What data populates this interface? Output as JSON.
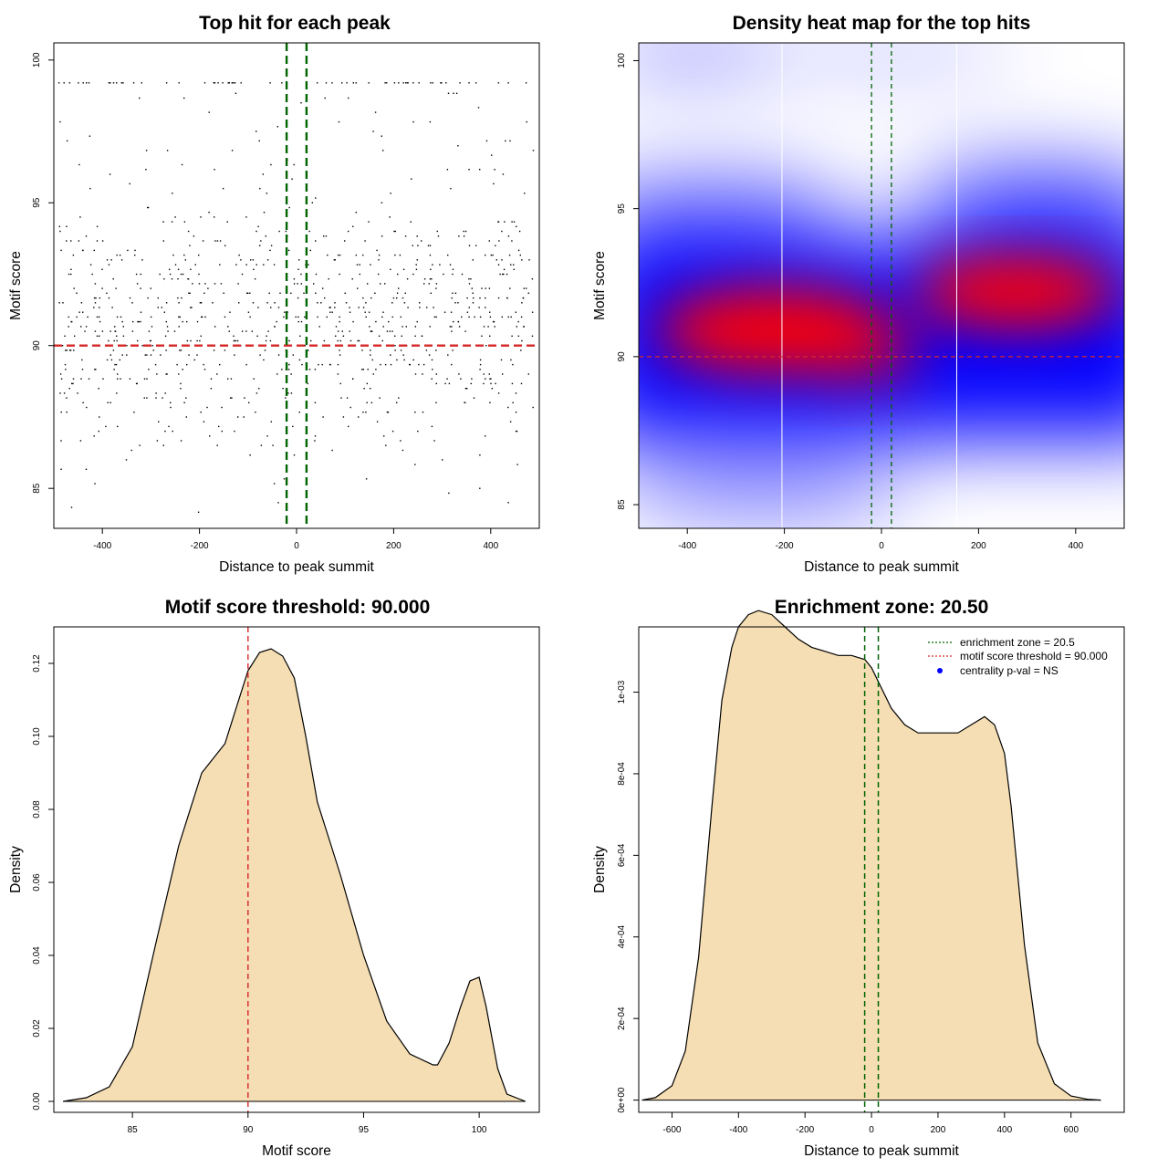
{
  "chart_data": [
    {
      "type": "scatter",
      "title": "Top hit for each peak",
      "xlabel": "Distance to peak summit",
      "ylabel": "Motif score",
      "xlim": [
        -500,
        500
      ],
      "ylim": [
        83.6,
        100.6
      ],
      "xticks": [
        -400,
        -200,
        0,
        200,
        400
      ],
      "yticks": [
        85,
        90,
        95,
        100
      ],
      "xtick_labels": [
        "-400",
        "-200",
        "0",
        "200",
        "400"
      ],
      "ytick_labels": [
        "85",
        "90",
        "95",
        "100"
      ],
      "hlines": [
        {
          "y": 90,
          "color": "#d62728",
          "style": "dashed"
        }
      ],
      "vlines": [
        {
          "x": -20.5,
          "color": "#006400",
          "style": "dashed"
        },
        {
          "x": 20.5,
          "color": "#006400",
          "style": "dashed"
        }
      ],
      "approx_points": 1000,
      "y_distribution": "concentrated 86-94, with a row of perfect scores at 100"
    },
    {
      "type": "heatmap",
      "title": "Density heat map for the top hits",
      "xlabel": "Distance to peak summit",
      "ylabel": "Motif score",
      "xlim": [
        -500,
        500
      ],
      "ylim": [
        84.2,
        100.6
      ],
      "xticks": [
        -400,
        -200,
        0,
        200,
        400
      ],
      "yticks": [
        85,
        90,
        95,
        100
      ],
      "xtick_labels": [
        "-400",
        "-200",
        "0",
        "200",
        "400"
      ],
      "ytick_labels": [
        "85",
        "90",
        "95",
        "100"
      ],
      "colorscale": [
        "#ffffff",
        "#0000ff",
        "#ff0000"
      ],
      "hotspots": [
        {
          "x": -220,
          "y": 90.9
        },
        {
          "x": 280,
          "y": 92.2
        }
      ],
      "hlines": [
        {
          "y": 90,
          "color": "#d62728",
          "style": "dashed"
        }
      ],
      "vlines": [
        {
          "x": -20.5,
          "color": "#006400",
          "style": "dashed"
        },
        {
          "x": 20.5,
          "color": "#006400",
          "style": "dashed"
        }
      ],
      "white_vlines": [
        -205,
        155
      ]
    },
    {
      "type": "area",
      "title": "Motif score threshold: 90.000",
      "xlabel": "Motif score",
      "ylabel": "Density",
      "xlim": [
        81.6,
        102.6
      ],
      "ylim": [
        -0.003,
        0.13
      ],
      "xticks": [
        85,
        90,
        95,
        100
      ],
      "yticks": [
        0,
        0.02,
        0.04,
        0.06,
        0.08,
        0.1,
        0.12
      ],
      "xtick_labels": [
        "85",
        "90",
        "95",
        "100"
      ],
      "ytick_labels": [
        "0.00",
        "0.02",
        "0.04",
        "0.06",
        "0.08",
        "0.10",
        "0.12"
      ],
      "fill": "#f5deb3",
      "vlines": [
        {
          "x": 90,
          "color": "#d62728",
          "style": "dashed"
        }
      ],
      "x": [
        82,
        83,
        84,
        85,
        86,
        87,
        88,
        88.5,
        89,
        89.5,
        90,
        90.5,
        91,
        91.5,
        92,
        92.5,
        93,
        93.5,
        94,
        95,
        96,
        97,
        98,
        98.2,
        98.7,
        99.2,
        99.6,
        100,
        100.3,
        100.8,
        101.2,
        102
      ],
      "y": [
        0.0,
        0.001,
        0.004,
        0.015,
        0.043,
        0.07,
        0.09,
        0.094,
        0.098,
        0.108,
        0.118,
        0.123,
        0.124,
        0.122,
        0.116,
        0.1,
        0.082,
        0.072,
        0.062,
        0.04,
        0.022,
        0.013,
        0.01,
        0.01,
        0.016,
        0.026,
        0.033,
        0.034,
        0.026,
        0.009,
        0.002,
        0.0
      ]
    },
    {
      "type": "area",
      "title": "Enrichment zone: 20.50",
      "xlabel": "Distance to peak summit",
      "ylabel": "Density",
      "xlim": [
        -700,
        760
      ],
      "ylim": [
        -3e-05,
        0.00116
      ],
      "xticks": [
        -600,
        -400,
        -200,
        0,
        200,
        400,
        600
      ],
      "yticks": [
        0,
        0.0002,
        0.0004,
        0.0006,
        0.0008,
        0.001
      ],
      "xtick_labels": [
        "-600",
        "-400",
        "-200",
        "0",
        "200",
        "400",
        "600"
      ],
      "ytick_labels": [
        "0e+00",
        "2e-04",
        "4e-04",
        "6e-04",
        "8e-04",
        "1e-03"
      ],
      "fill": "#f5deb3",
      "vlines": [
        {
          "x": -20.5,
          "color": "#006400",
          "style": "dashed"
        },
        {
          "x": 20.5,
          "color": "#006400",
          "style": "dashed"
        }
      ],
      "x": [
        -690,
        -650,
        -600,
        -560,
        -520,
        -480,
        -450,
        -420,
        -400,
        -370,
        -340,
        -300,
        -260,
        -220,
        -180,
        -140,
        -100,
        -60,
        -20,
        0,
        30,
        60,
        100,
        140,
        180,
        220,
        260,
        300,
        340,
        370,
        400,
        420,
        440,
        460,
        500,
        550,
        600,
        650,
        690
      ],
      "y": [
        0.0,
        6e-06,
        3.5e-05,
        0.00012,
        0.00035,
        0.00072,
        0.00098,
        0.00111,
        0.00116,
        0.00119,
        0.0012,
        0.00119,
        0.00116,
        0.00113,
        0.00111,
        0.0011,
        0.00109,
        0.00109,
        0.00108,
        0.00106,
        0.00101,
        0.00096,
        0.00092,
        0.0009,
        0.0009,
        0.0009,
        0.0009,
        0.00092,
        0.00094,
        0.00092,
        0.00085,
        0.00072,
        0.00055,
        0.00038,
        0.00014,
        4e-05,
        1e-05,
        2e-06,
        0.0
      ],
      "legend": {
        "position": "top-right",
        "entries": [
          {
            "label": "enrichment zone = 20.5",
            "color": "#006400",
            "style": "dotted-line"
          },
          {
            "label": "motif score threshold = 90.000",
            "color": "#d62728",
            "style": "dotted-line"
          },
          {
            "label": "centrality p-val = NS",
            "color": "#0000ff",
            "style": "point"
          }
        ]
      }
    }
  ]
}
